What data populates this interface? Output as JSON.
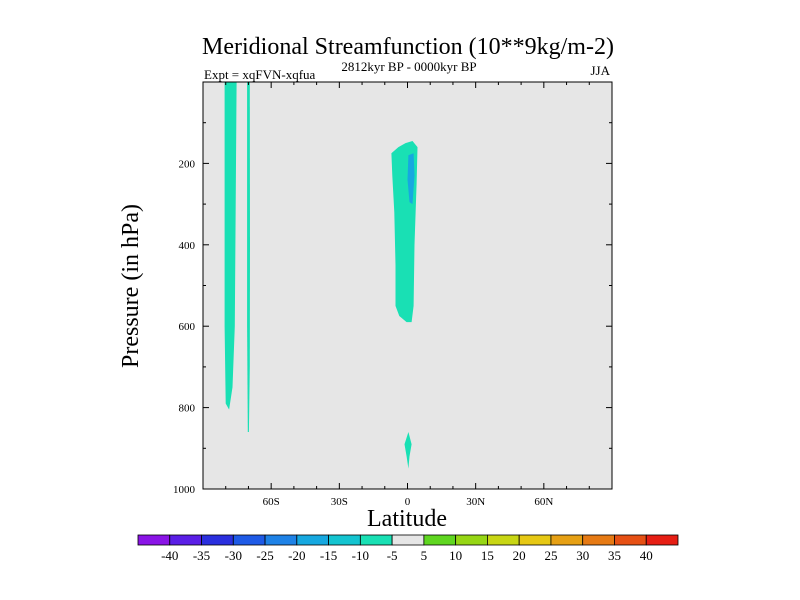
{
  "chart_data": {
    "type": "contour",
    "title": "Meridional Streamfunction (10**9kg/m-2)",
    "subtitle_left": "Expt = xqFVN-xqfua",
    "subtitle_center": "2812kyr BP - 0000kyr BP",
    "subtitle_right": "JJA",
    "xlabel": "Latitude",
    "ylabel": "Pressure (in hPa)",
    "xlim": [
      -90,
      90
    ],
    "ylim": [
      1000,
      0
    ],
    "x_ticks": [
      {
        "value": -60,
        "label": "60S"
      },
      {
        "value": -30,
        "label": "30S"
      },
      {
        "value": 0,
        "label": "0"
      },
      {
        "value": 30,
        "label": "30N"
      },
      {
        "value": 60,
        "label": "60N"
      }
    ],
    "y_ticks": [
      {
        "value": 200,
        "label": "200"
      },
      {
        "value": 400,
        "label": "400"
      },
      {
        "value": 600,
        "label": "600"
      },
      {
        "value": 800,
        "label": "800"
      },
      {
        "value": 1000,
        "label": "1000"
      }
    ],
    "background_color": "#e6e6e6",
    "colorbar": {
      "labels": [
        "-40",
        "-35",
        "-30",
        "-25",
        "-20",
        "-15",
        "-10",
        "-5",
        "5",
        "10",
        "15",
        "20",
        "25",
        "30",
        "35",
        "40"
      ],
      "colors": [
        "#8a14e6",
        "#5a1ee6",
        "#2a2fde",
        "#1e5ae6",
        "#1e82e6",
        "#16a8e0",
        "#14c4d0",
        "#19e0b4",
        "#e6e6e6",
        "#5fd620",
        "#96d614",
        "#c8d614",
        "#e6c814",
        "#e6a014",
        "#e67a14",
        "#e65014",
        "#e61e14"
      ]
    },
    "regions": [
      {
        "name": "cyan-band-1",
        "color": "#19e0b4",
        "points": [
          [
            -80.5,
            0
          ],
          [
            -75.2,
            0
          ],
          [
            -75.6,
            300
          ],
          [
            -76.0,
            600
          ],
          [
            -77.0,
            750
          ],
          [
            -78.5,
            805
          ],
          [
            -80.0,
            790
          ],
          [
            -80.5,
            600
          ]
        ]
      },
      {
        "name": "cyan-band-2",
        "color": "#19e0b4",
        "points": [
          [
            -70.6,
            0
          ],
          [
            -69.4,
            0
          ],
          [
            -69.3,
            400
          ],
          [
            -69.4,
            700
          ],
          [
            -69.8,
            860
          ],
          [
            -70.3,
            860
          ],
          [
            -70.6,
            600
          ]
        ]
      },
      {
        "name": "cyan-tropical-upper",
        "color": "#19e0b4",
        "points": [
          [
            -7.1,
            175
          ],
          [
            -4.0,
            160
          ],
          [
            -0.9,
            150
          ],
          [
            2.2,
            145
          ],
          [
            4.4,
            160
          ],
          [
            4.0,
            250
          ],
          [
            3.1,
            400
          ],
          [
            2.7,
            550
          ],
          [
            1.8,
            590
          ],
          [
            -0.4,
            590
          ],
          [
            -3.6,
            575
          ],
          [
            -5.3,
            550
          ],
          [
            -5.3,
            450
          ],
          [
            -5.8,
            320
          ],
          [
            -6.7,
            230
          ]
        ]
      },
      {
        "name": "blue-tropical-core",
        "color": "#16a8e0",
        "points": [
          [
            0.4,
            180
          ],
          [
            2.7,
            175
          ],
          [
            3.1,
            230
          ],
          [
            2.2,
            300
          ],
          [
            0.9,
            295
          ],
          [
            0.0,
            240
          ]
        ]
      },
      {
        "name": "cyan-tropical-lower",
        "color": "#19e0b4",
        "points": [
          [
            0.4,
            860
          ],
          [
            1.8,
            890
          ],
          [
            0.9,
            920
          ],
          [
            0.4,
            950
          ],
          [
            -0.4,
            920
          ],
          [
            -1.3,
            890
          ]
        ]
      }
    ]
  }
}
